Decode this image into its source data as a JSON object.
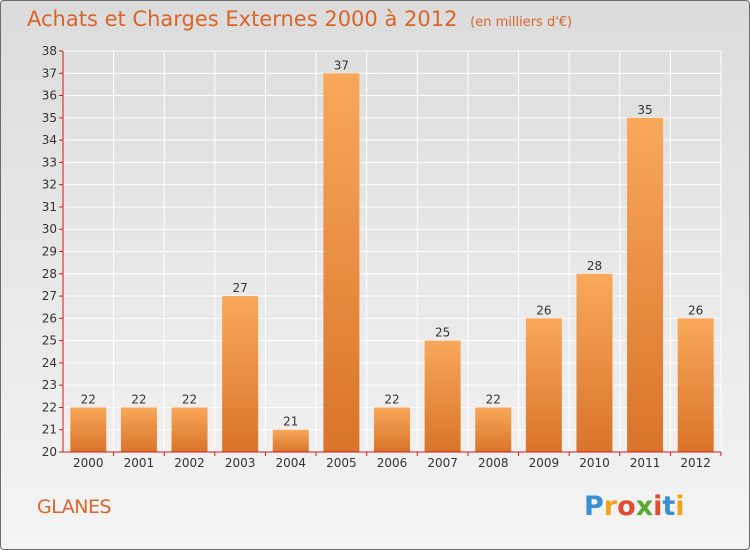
{
  "title": "Achats et Charges Externes 2000 à 2012",
  "subtitle": "(en milliers d'€)",
  "place": "GLANES",
  "logo": {
    "text": "Proxiti",
    "letters": [
      "P",
      "r",
      "o",
      "x",
      "i",
      "t",
      "i"
    ],
    "colors": [
      "#3a8fd1",
      "#f2a11d",
      "#e24b2f",
      "#5aa82f",
      "#e24b2f",
      "#3a8fd1",
      "#f2a11d"
    ]
  },
  "colors": {
    "bar_top": "#f9a85a",
    "bar_bottom": "#d9742a",
    "axis": "#cc1a1a",
    "grid": "#ffffff",
    "text": "#333333"
  },
  "chart_data": {
    "type": "bar",
    "categories": [
      "2000",
      "2001",
      "2002",
      "2003",
      "2004",
      "2005",
      "2006",
      "2007",
      "2008",
      "2009",
      "2010",
      "2011",
      "2012"
    ],
    "values": [
      22,
      22,
      22,
      27,
      21,
      37,
      22,
      25,
      22,
      26,
      28,
      35,
      26
    ],
    "ylim": [
      20,
      38
    ],
    "yticks": [
      20,
      21,
      22,
      23,
      24,
      25,
      26,
      27,
      28,
      29,
      30,
      31,
      32,
      33,
      34,
      35,
      36,
      37,
      38
    ],
    "grid": true,
    "data_labels": true
  }
}
